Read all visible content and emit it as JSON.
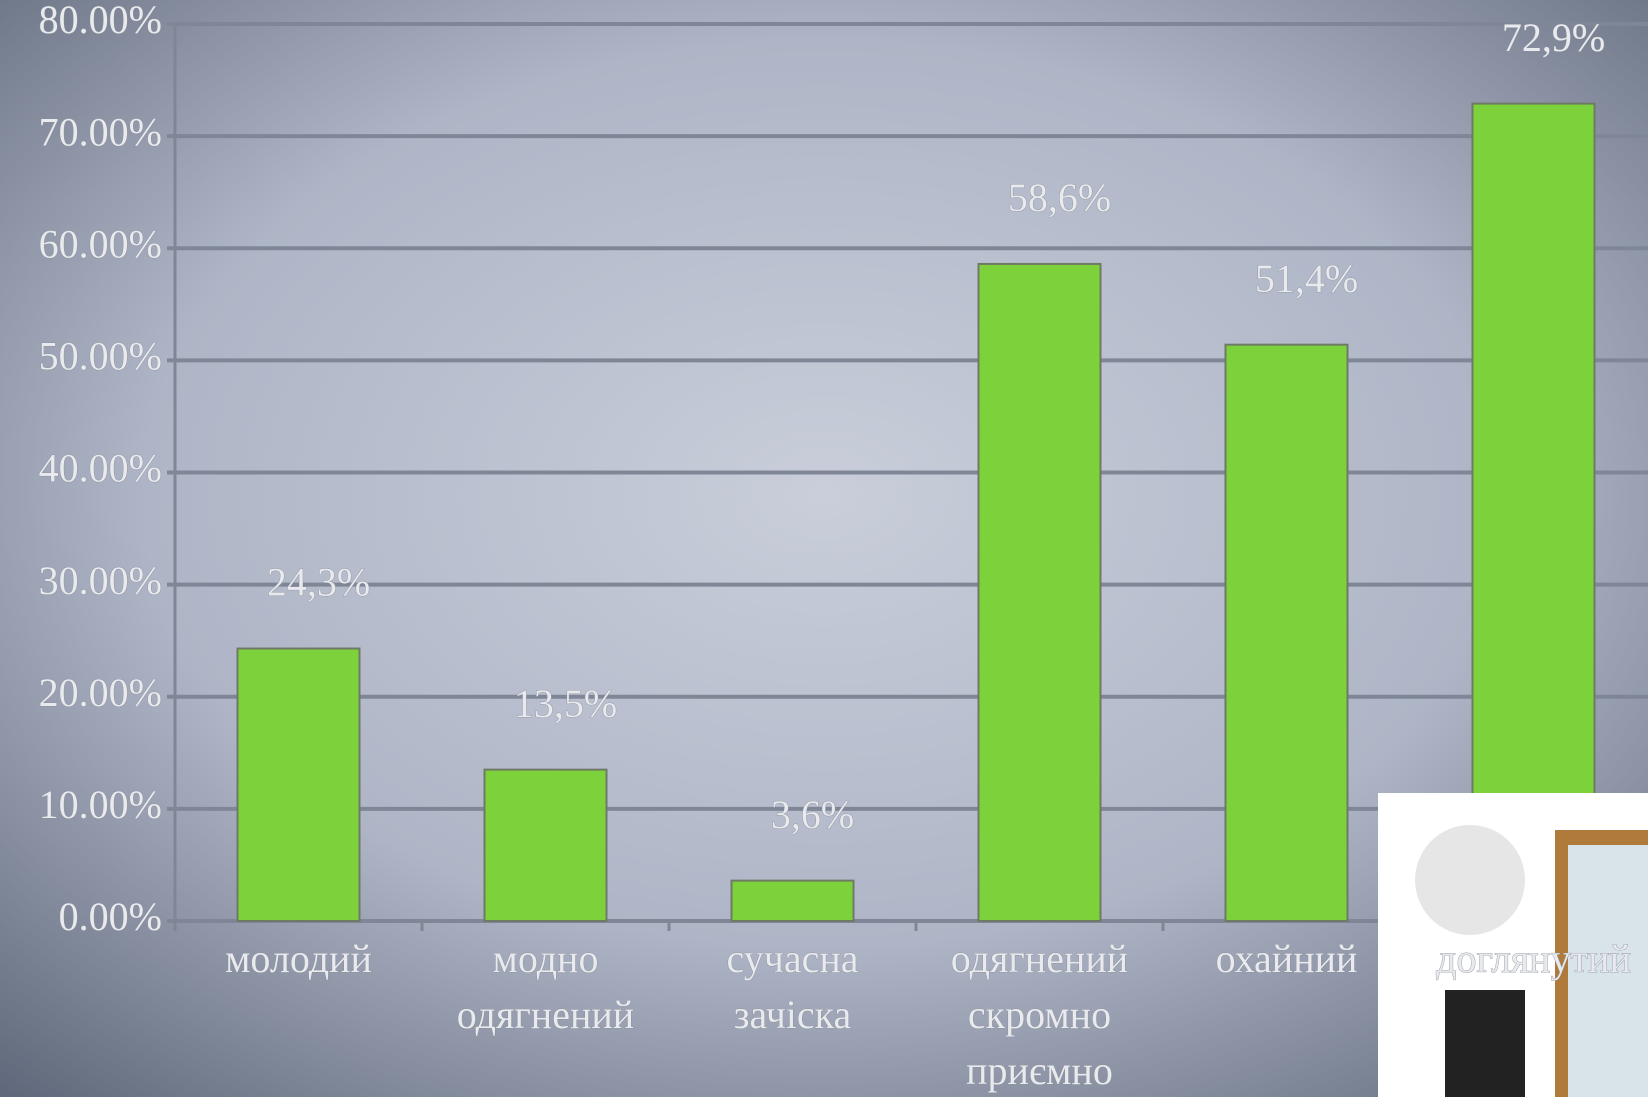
{
  "chart_data": {
    "type": "bar",
    "categories": [
      "молодий",
      "модно одягнений",
      "сучасна зачіска",
      "одягнений скромно приємно",
      "охайний",
      "доглянутий"
    ],
    "values": [
      24.3,
      13.5,
      3.6,
      58.6,
      51.4,
      72.9
    ],
    "value_labels": [
      "24,3%",
      "13,5%",
      "3,6%",
      "58,6%",
      "51,4%",
      "72,9%"
    ],
    "color": "#7dd13a",
    "ylim": [
      0,
      80
    ],
    "yticks": [
      {
        "value": 0,
        "label": "0.00%"
      },
      {
        "value": 10,
        "label": "10.00%"
      },
      {
        "value": 20,
        "label": "20.00%"
      },
      {
        "value": 30,
        "label": "30.00%"
      },
      {
        "value": 40,
        "label": "40.00%"
      },
      {
        "value": 50,
        "label": "50.00%"
      },
      {
        "value": 60,
        "label": "60.00%"
      },
      {
        "value": 70,
        "label": "70.00%"
      },
      {
        "value": 80,
        "label": "80.00%"
      }
    ],
    "grid": true
  }
}
